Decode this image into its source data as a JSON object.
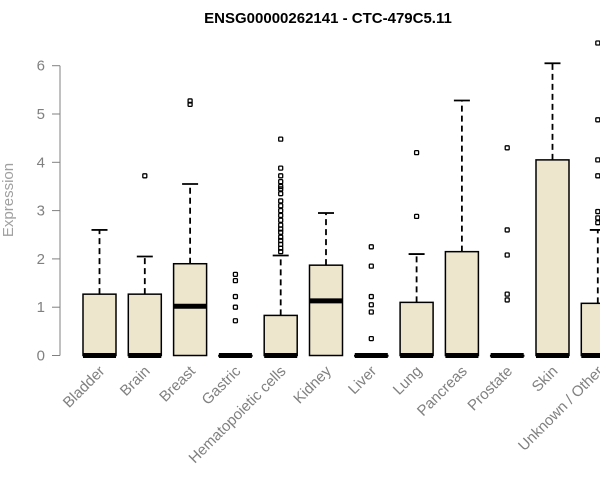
{
  "chart_data": {
    "type": "box",
    "title": "ENSG00000262141 - CTC-479C5.11",
    "ylabel": "Expression",
    "ylim": [
      0,
      6.6
    ],
    "yticks": [
      0,
      1,
      2,
      3,
      4,
      5,
      6
    ],
    "box_fill": "#ede6cc",
    "categories": [
      "Bladder",
      "Brain",
      "Breast",
      "Gastric",
      "Hematopoietic cells",
      "Kidney",
      "Liver",
      "Lung",
      "Pancreas",
      "Prostate",
      "Skin",
      "Unknown / Other"
    ],
    "boxes": [
      {
        "category": "Bladder",
        "min": 0,
        "q1": 0,
        "median": 0,
        "q3": 1.27,
        "max": 2.6,
        "outliers": []
      },
      {
        "category": "Brain",
        "min": 0,
        "q1": 0,
        "median": 0,
        "q3": 1.27,
        "max": 2.05,
        "outliers": [
          3.72
        ]
      },
      {
        "category": "Breast",
        "min": 0,
        "q1": 0,
        "median": 1.02,
        "q3": 1.9,
        "max": 3.55,
        "outliers": [
          5.2,
          5.27
        ]
      },
      {
        "category": "Gastric",
        "min": 0,
        "q1": 0,
        "median": 0,
        "q3": 0,
        "max": 0,
        "outliers": [
          0.72,
          1.0,
          1.22,
          1.55,
          1.68
        ]
      },
      {
        "category": "Hematopoietic cells",
        "min": 0,
        "q1": 0,
        "median": 0,
        "q3": 0.83,
        "max": 2.07,
        "outliers": [
          2.15,
          2.22,
          2.3,
          2.38,
          2.45,
          2.55,
          2.62,
          2.7,
          2.8,
          2.9,
          3.0,
          3.1,
          3.2,
          3.35,
          3.45,
          3.5,
          3.6,
          3.72,
          3.88,
          4.48
        ]
      },
      {
        "category": "Kidney",
        "min": 0,
        "q1": 0,
        "median": 1.13,
        "q3": 1.87,
        "max": 2.95,
        "outliers": []
      },
      {
        "category": "Liver",
        "min": 0,
        "q1": 0,
        "median": 0,
        "q3": 0,
        "max": 0,
        "outliers": [
          0.35,
          0.9,
          1.05,
          1.22,
          1.85,
          2.25
        ]
      },
      {
        "category": "Lung",
        "min": 0,
        "q1": 0,
        "median": 0,
        "q3": 1.1,
        "max": 2.1,
        "outliers": [
          2.88,
          4.2
        ]
      },
      {
        "category": "Pancreas",
        "min": 0,
        "q1": 0,
        "median": 0,
        "q3": 2.15,
        "max": 5.28,
        "outliers": []
      },
      {
        "category": "Prostate",
        "min": 0,
        "q1": 0,
        "median": 0,
        "q3": 0,
        "max": 0,
        "outliers": [
          1.15,
          1.27,
          2.08,
          2.6,
          4.3
        ]
      },
      {
        "category": "Skin",
        "min": 0,
        "q1": 0,
        "median": 0,
        "q3": 4.05,
        "max": 6.05,
        "outliers": []
      },
      {
        "category": "Unknown / Other",
        "min": 0,
        "q1": 0,
        "median": 0,
        "q3": 1.08,
        "max": 2.6,
        "outliers": [
          2.75,
          2.85,
          2.98,
          3.72,
          4.05,
          4.88,
          6.47
        ]
      }
    ]
  }
}
